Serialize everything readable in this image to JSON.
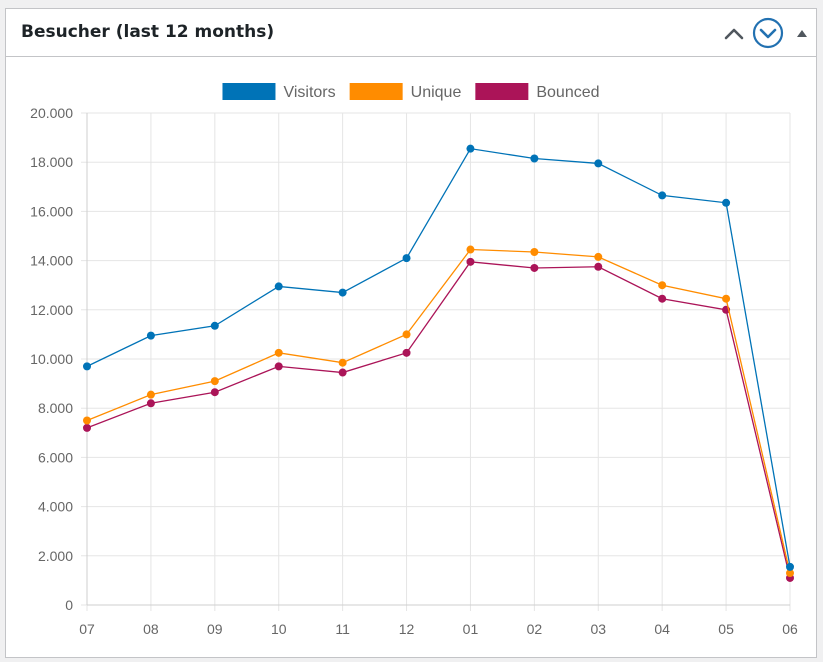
{
  "widget": {
    "title": "Besucher (last 12 months)",
    "buttons": {
      "move_up_icon": "chevron-up-icon",
      "move_down_icon": "chevron-down-circle-icon",
      "toggle_icon": "triangle-up-icon"
    }
  },
  "chart_data": {
    "type": "line",
    "categories": [
      "07",
      "08",
      "09",
      "10",
      "11",
      "12",
      "01",
      "02",
      "03",
      "04",
      "05",
      "06"
    ],
    "ylim": [
      0,
      20000
    ],
    "yticks": [
      "0",
      "2.000",
      "4.000",
      "6.000",
      "8.000",
      "10.000",
      "12.000",
      "14.000",
      "16.000",
      "18.000",
      "20.000"
    ],
    "grid": true,
    "legend_position": "top",
    "series": [
      {
        "name": "Visitors",
        "color": "#0073b7",
        "values": [
          9700,
          10950,
          11350,
          12950,
          12700,
          14100,
          18550,
          18150,
          17950,
          16650,
          16350,
          1550
        ]
      },
      {
        "name": "Unique",
        "color": "#ff8c00",
        "values": [
          7500,
          8550,
          9100,
          10250,
          9850,
          11000,
          14450,
          14350,
          14150,
          13000,
          12450,
          1300
        ]
      },
      {
        "name": "Bounced",
        "color": "#ab1458",
        "values": [
          7200,
          8200,
          8650,
          9700,
          9450,
          10250,
          13950,
          13700,
          13750,
          12450,
          12000,
          1100
        ]
      }
    ]
  }
}
